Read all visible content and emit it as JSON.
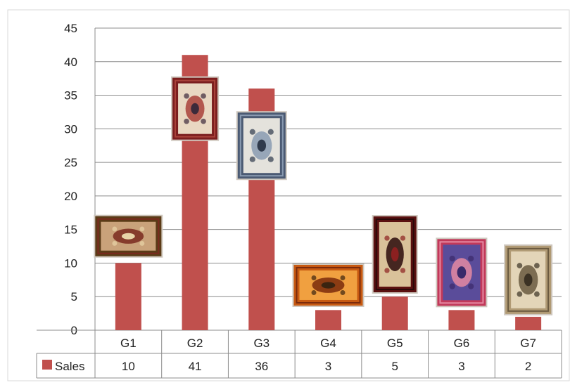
{
  "chart_data": {
    "type": "bar",
    "title": "",
    "xlabel": "",
    "ylabel": "",
    "categories": [
      "G1",
      "G2",
      "G3",
      "G4",
      "G5",
      "G6",
      "G7"
    ],
    "series": [
      {
        "name": "Sales",
        "values": [
          10,
          41,
          36,
          3,
          5,
          3,
          2
        ]
      }
    ],
    "ylim": [
      0,
      45
    ],
    "yticks": [
      0,
      5,
      10,
      15,
      20,
      25,
      30,
      35,
      40,
      45
    ],
    "grid": true,
    "legend": "data-table-left",
    "data_table": true,
    "bar_color": "#c0504d",
    "grid_color": "#8c8c8c",
    "rug_images": [
      {
        "category": "G1",
        "kind": "pictorial-landscape-rug",
        "palette": [
          "#5b3b17",
          "#c9a27a",
          "#7a2a1f",
          "#e8d4a8"
        ]
      },
      {
        "category": "G2",
        "kind": "red-floral-rug",
        "palette": [
          "#7b1e1e",
          "#e9d8c2",
          "#a9423a",
          "#3c2a3a"
        ]
      },
      {
        "category": "G3",
        "kind": "ivory-medallion-rug",
        "palette": [
          "#4b5a73",
          "#e4e2dc",
          "#8a9bb2",
          "#2f3a4c"
        ]
      },
      {
        "category": "G4",
        "kind": "orange-pictorial-rug",
        "palette": [
          "#c75a12",
          "#f0a040",
          "#7a2a0c",
          "#3b2410"
        ]
      },
      {
        "category": "G5",
        "kind": "dark-red-prayer-rug",
        "palette": [
          "#5a1010",
          "#d9c29a",
          "#2a0a0a",
          "#8c2020"
        ]
      },
      {
        "category": "G6",
        "kind": "pink-medallion-rug",
        "palette": [
          "#c2395a",
          "#5a4c9a",
          "#e58aa2",
          "#3a2a6a"
        ]
      },
      {
        "category": "G7",
        "kind": "beige-pictorial-rug",
        "palette": [
          "#b09a74",
          "#e3d5b8",
          "#6a5a3f",
          "#3b3224"
        ]
      }
    ]
  }
}
